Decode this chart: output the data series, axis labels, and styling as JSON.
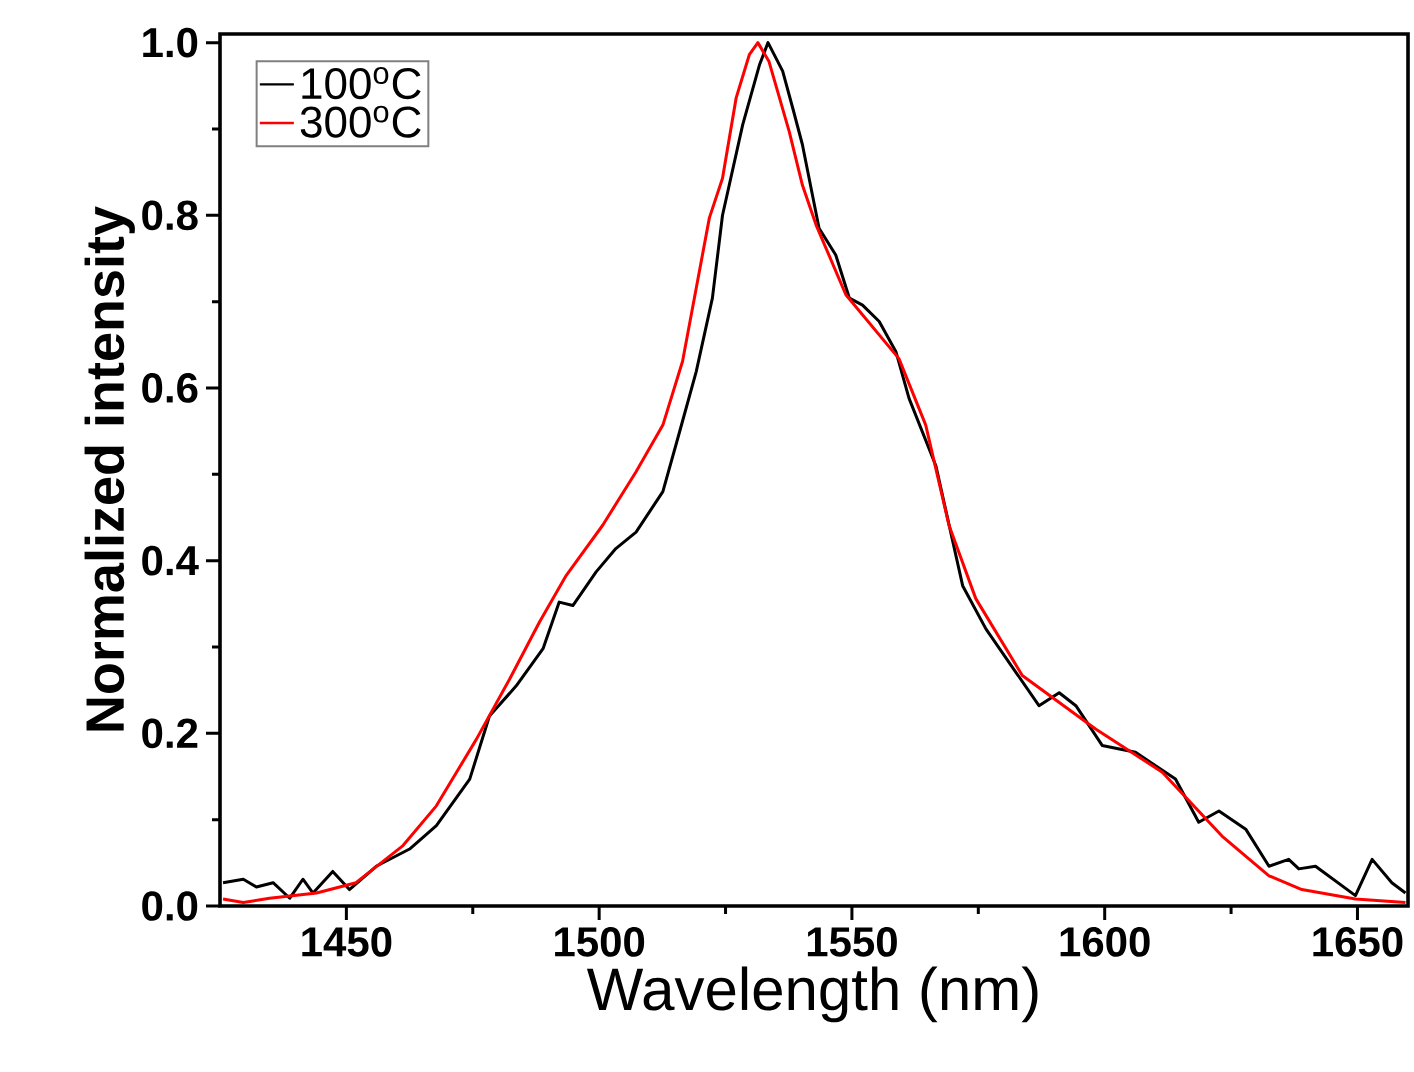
{
  "chart_data": {
    "type": "line",
    "xlabel": "Wavelength (nm)",
    "ylabel": "Normalized intensity",
    "xlim": [
      1425,
      1660
    ],
    "ylim": [
      0,
      1.01
    ],
    "xticks": [
      1450,
      1500,
      1550,
      1600,
      1650
    ],
    "yticks": [
      {
        "value": 0,
        "label": "0.0"
      },
      {
        "value": 0.2,
        "label": "0.2"
      },
      {
        "value": 0.4,
        "label": "0.4"
      },
      {
        "value": 0.6,
        "label": "0.6"
      },
      {
        "value": 0.8,
        "label": "0.8"
      },
      {
        "value": 1.0,
        "label": "1.0"
      }
    ],
    "legend": "top left",
    "series": [
      {
        "name": "100$^{o}$C",
        "color": "#000000",
        "x": [
          1425.6,
          1429.6,
          1432.2,
          1435.5,
          1438.8,
          1441.4,
          1443.4,
          1447.3,
          1450.6,
          1455.9,
          1462.5,
          1467.8,
          1474.4,
          1478.3,
          1483.6,
          1488.9,
          1492.1,
          1494.8,
          1499.4,
          1503.3,
          1507.3,
          1512.6,
          1515.9,
          1519.2,
          1522.4,
          1524.4,
          1528.4,
          1531.7,
          1533.4,
          1536.3,
          1538.3,
          1540.2,
          1543.5,
          1546.8,
          1549.5,
          1552.1,
          1555.4,
          1558.7,
          1561.3,
          1566.6,
          1571.9,
          1576.5,
          1582.4,
          1587.0,
          1591.0,
          1594.3,
          1599.5,
          1606.1,
          1614.0,
          1618.6,
          1622.6,
          1627.9,
          1632.5,
          1636.4,
          1638.4,
          1641.7,
          1649.6,
          1652.9,
          1656.8,
          1659.5
        ],
        "values": [
          0.027,
          0.031,
          0.022,
          0.027,
          0.009,
          0.031,
          0.015,
          0.04,
          0.019,
          0.046,
          0.066,
          0.093,
          0.147,
          0.22,
          0.255,
          0.298,
          0.352,
          0.348,
          0.387,
          0.414,
          0.433,
          0.48,
          0.549,
          0.619,
          0.704,
          0.8,
          0.905,
          0.974,
          1.0,
          0.967,
          0.924,
          0.882,
          0.785,
          0.754,
          0.704,
          0.696,
          0.677,
          0.642,
          0.588,
          0.51,
          0.371,
          0.321,
          0.271,
          0.232,
          0.247,
          0.232,
          0.186,
          0.178,
          0.147,
          0.097,
          0.11,
          0.089,
          0.046,
          0.054,
          0.043,
          0.046,
          0.012,
          0.054,
          0.027,
          0.015
        ]
      },
      {
        "name": "300$^{o}$C",
        "color": "#ff0000",
        "x": [
          1425.6,
          1429.6,
          1434.8,
          1444.1,
          1451.9,
          1461.2,
          1467.8,
          1475.7,
          1482.3,
          1488.2,
          1493.5,
          1500.7,
          1507.3,
          1512.6,
          1516.5,
          1521.8,
          1524.4,
          1527.1,
          1529.7,
          1531.4,
          1533.6,
          1537.6,
          1540.2,
          1542.9,
          1548.8,
          1559.3,
          1564.6,
          1569.2,
          1574.5,
          1583.7,
          1598.2,
          1611.4,
          1623.2,
          1632.5,
          1639.0,
          1649.6,
          1659.5
        ],
        "values": [
          0.008,
          0.004,
          0.009,
          0.015,
          0.027,
          0.07,
          0.116,
          0.193,
          0.263,
          0.329,
          0.383,
          0.441,
          0.503,
          0.557,
          0.631,
          0.797,
          0.843,
          0.936,
          0.986,
          1.0,
          0.978,
          0.897,
          0.835,
          0.789,
          0.708,
          0.634,
          0.557,
          0.441,
          0.356,
          0.267,
          0.205,
          0.155,
          0.081,
          0.035,
          0.019,
          0.008,
          0.004
        ]
      }
    ]
  }
}
